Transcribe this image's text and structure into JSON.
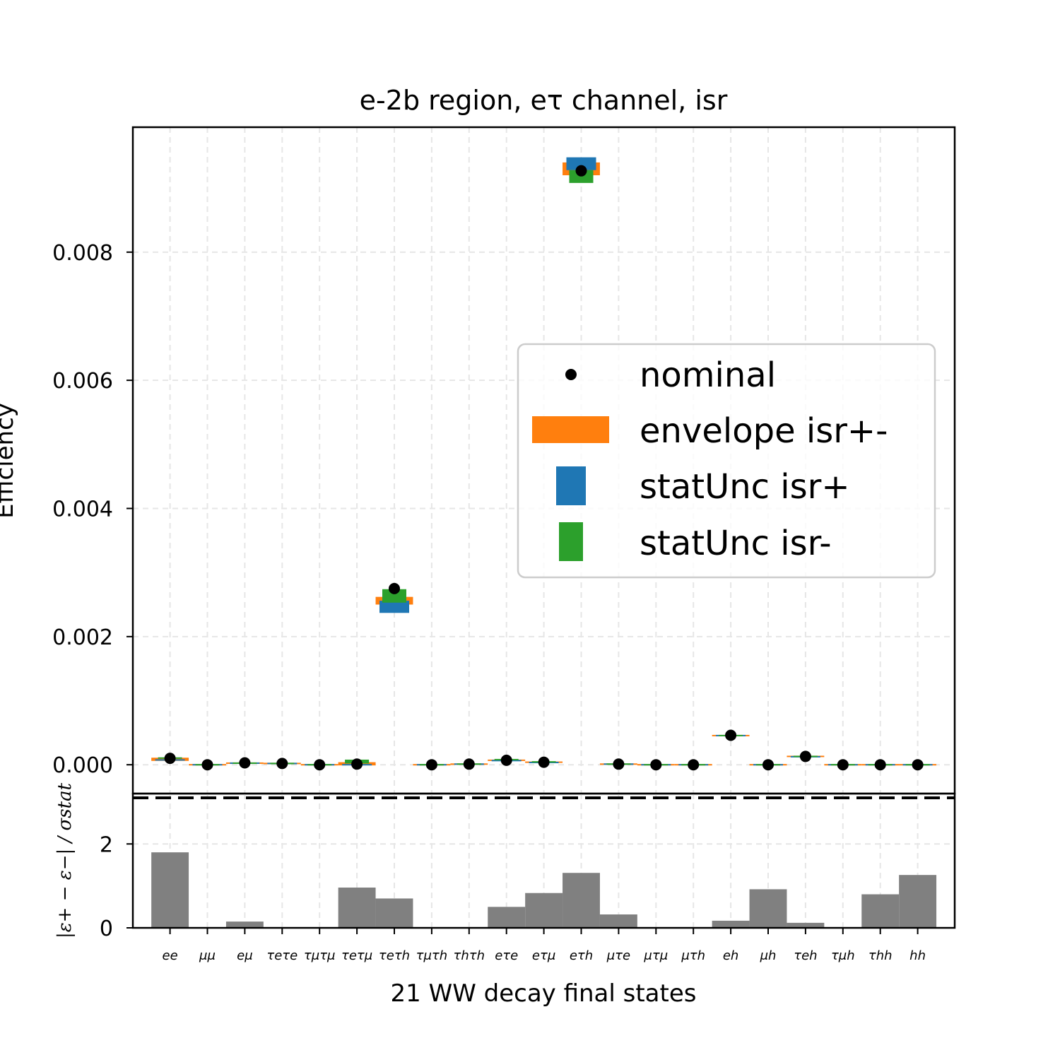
{
  "chart_data": {
    "type": "scatter",
    "title": "e-2b region, eτ channel, isr",
    "ylabel": "Efficiency",
    "xlabel": "21 WW decay final states",
    "ylim": [
      -0.00045,
      0.00995
    ],
    "yticks": [
      "0.000",
      "0.002",
      "0.004",
      "0.006",
      "0.008"
    ],
    "ytick_values": [
      0,
      0.002,
      0.004,
      0.006,
      0.008
    ],
    "grid": true,
    "legend_placement": "center-right",
    "categories": [
      "ee",
      "μμ",
      "eμ",
      "τeτe",
      "τμτμ",
      "τeτμ",
      "τeτh",
      "τμτh",
      "τhτh",
      "eτe",
      "eτμ",
      "eτh",
      "μτe",
      "μτμ",
      "μτh",
      "eh",
      "μh",
      "τeh",
      "τμh",
      "τhh",
      "hh"
    ],
    "series": [
      {
        "name": "nominal",
        "color": "#000000",
        "values": [
          0.0001,
          0.0,
          3e-05,
          2e-05,
          0.0,
          1e-05,
          0.00275,
          0.0,
          1e-05,
          7e-05,
          4e-05,
          0.00927,
          1e-05,
          0.0,
          0.0,
          0.00046,
          0.0,
          0.00013,
          0.0,
          0.0,
          0.0
        ]
      },
      {
        "name": "envelope isr+-",
        "color": "#ff7f0e",
        "low": [
          6e-05,
          0.0,
          2e-05,
          2e-05,
          0.0,
          -1e-05,
          0.0025,
          0.0,
          1e-05,
          6e-05,
          3e-05,
          0.0092,
          1e-05,
          0.0,
          0.0,
          0.00045,
          0.0,
          0.00012,
          0.0,
          0.0,
          0.0
        ],
        "high": [
          0.00011,
          0.0,
          3e-05,
          2e-05,
          0.0,
          4e-05,
          0.00262,
          0.0,
          1e-05,
          8e-05,
          5e-05,
          0.0094,
          1e-05,
          0.0,
          0.0,
          0.00046,
          0.0,
          0.00014,
          0.0,
          0.0,
          0.0
        ]
      },
      {
        "name": "statUnc isr+",
        "color": "#1f77b4",
        "low": [
          7e-05,
          0.0,
          2e-05,
          2e-05,
          0.0,
          -1e-05,
          0.00237,
          0.0,
          1e-05,
          6e-05,
          3e-05,
          0.00928,
          1e-05,
          0.0,
          0.0,
          0.00045,
          0.0,
          0.00012,
          0.0,
          0.0,
          0.0
        ],
        "high": [
          8e-05,
          0.0,
          3e-05,
          2e-05,
          0.0,
          1e-05,
          0.00256,
          0.0,
          1e-05,
          7e-05,
          4e-05,
          0.00948,
          1e-05,
          0.0,
          0.0,
          0.00046,
          0.0,
          0.00013,
          0.0,
          0.0,
          0.0
        ]
      },
      {
        "name": "statUnc isr-",
        "color": "#2ca02c",
        "low": [
          0.0001,
          0.0,
          2e-05,
          2e-05,
          0.0,
          2e-05,
          0.00253,
          0.0,
          1e-05,
          7e-05,
          4e-05,
          0.00908,
          1e-05,
          0.0,
          0.0,
          0.00045,
          0.0,
          0.00012,
          0.0,
          0.0,
          0.0
        ],
        "high": [
          0.00011,
          0.0,
          3e-05,
          2e-05,
          0.0,
          8e-05,
          0.00274,
          0.0,
          1e-05,
          9e-05,
          5e-05,
          0.00928,
          1e-05,
          0.0,
          0.0,
          0.00046,
          0.0,
          0.00014,
          0.0,
          0.0,
          0.0
        ]
      }
    ],
    "ratio_panel": {
      "ylabel": "|ε+ − ε−| / σstat",
      "ylim": [
        0,
        3.2
      ],
      "yticks": [
        "0",
        "2"
      ],
      "ytick_values": [
        0,
        2
      ],
      "reference_line": 3.1,
      "color": "#808080",
      "values": [
        1.8,
        0.0,
        0.15,
        0.0,
        0.0,
        0.96,
        0.7,
        0.0,
        0.0,
        0.5,
        0.83,
        1.31,
        0.32,
        0.0,
        0.0,
        0.17,
        0.92,
        0.12,
        0.0,
        0.8,
        1.26
      ]
    }
  }
}
